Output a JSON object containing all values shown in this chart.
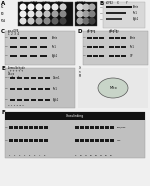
{
  "bg": "#f0f0f0",
  "panel_A_bg": "#111111",
  "panel_B_bg": "#d8d8d8",
  "panel_C_bg": "#c8c8c8",
  "panel_D_bg": "#c8c8c8",
  "panel_E_bg": "#c0c0c0",
  "panel_F_bg": "#c0c0c0",
  "band_dark": "#1a1a1a",
  "band_mid": "#444444",
  "band_light": "#666666",
  "spot_bright": "#f8f8f8",
  "spot_mid": "#aaaaaa",
  "spot_dim": "#555555"
}
